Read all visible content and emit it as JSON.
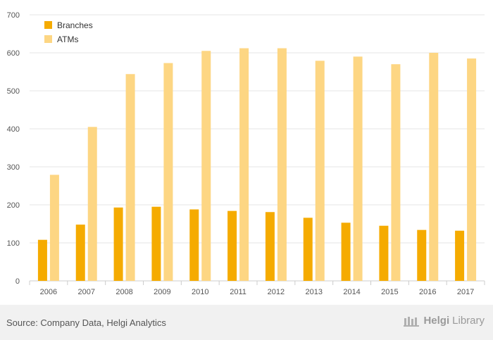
{
  "chart_data": {
    "type": "bar",
    "categories": [
      "2006",
      "2007",
      "2008",
      "2009",
      "2010",
      "2011",
      "2012",
      "2013",
      "2014",
      "2015",
      "2016",
      "2017"
    ],
    "series": [
      {
        "name": "Branches",
        "color": "#f5ab00",
        "values": [
          108,
          148,
          193,
          195,
          188,
          184,
          181,
          166,
          153,
          145,
          134,
          132
        ]
      },
      {
        "name": "ATMs",
        "color": "#fdd683",
        "values": [
          279,
          405,
          544,
          573,
          605,
          612,
          612,
          579,
          590,
          570,
          600,
          585
        ]
      }
    ],
    "yticks": [
      0,
      100,
      200,
      300,
      400,
      500,
      600,
      700
    ],
    "ylim": [
      0,
      700
    ],
    "grid": true,
    "legend": "top-left"
  },
  "footer": {
    "source": "Source: Company Data, Helgi Analytics",
    "brand_bold": "Helgi",
    "brand_rest": "Library"
  }
}
